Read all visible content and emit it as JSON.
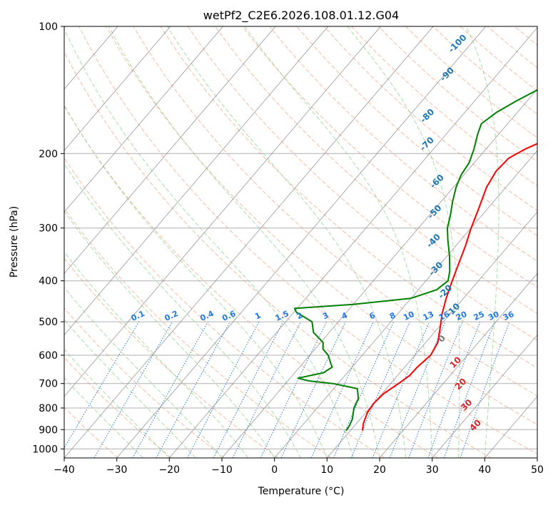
{
  "chart_data": {
    "type": "line",
    "title": "wetPf2_C2E6.2026.108.01.12.G04",
    "xlabel": "Temperature (°C)",
    "ylabel": "Pressure (hPa)",
    "xlim": [
      -40,
      50
    ],
    "ylim": [
      1050,
      100
    ],
    "x_ticks": [
      -40,
      -30,
      -20,
      -10,
      0,
      10,
      20,
      30,
      40,
      50
    ],
    "x_tick_labels": [
      "−40",
      "−30",
      "−20",
      "−10",
      "0",
      "10",
      "20",
      "30",
      "40",
      "50"
    ],
    "y_ticks": [
      100,
      200,
      300,
      400,
      500,
      600,
      700,
      800,
      900,
      1000
    ],
    "y_tick_labels": [
      "100",
      "200",
      "300",
      "400",
      "500",
      "600",
      "700",
      "800",
      "900",
      "1000"
    ],
    "colors": {
      "temperature": "#ff0000",
      "dewpoint": "#008000",
      "isotherm": "#888888",
      "dry_adiabat": "#f4a582",
      "moist_adiabat": "#8fd18f",
      "mixing_ratio": "#1f77e4",
      "height_labels": "#1f77b4",
      "warm_labels": "#d62728"
    },
    "series": [
      {
        "name": "Temperature",
        "points": [
          {
            "p": 905,
            "t": 12.3
          },
          {
            "p": 870,
            "t": 11.3
          },
          {
            "p": 820,
            "t": 10.3
          },
          {
            "p": 780,
            "t": 10.0
          },
          {
            "p": 740,
            "t": 10.3
          },
          {
            "p": 700,
            "t": 11.5
          },
          {
            "p": 670,
            "t": 12.3
          },
          {
            "p": 640,
            "t": 12.4
          },
          {
            "p": 600,
            "t": 13.0
          },
          {
            "p": 560,
            "t": 12.3
          },
          {
            "p": 520,
            "t": 10.5
          },
          {
            "p": 480,
            "t": 8.5
          },
          {
            "p": 440,
            "t": 6.7
          },
          {
            "p": 400,
            "t": 5.0
          },
          {
            "p": 370,
            "t": 3.7
          },
          {
            "p": 330,
            "t": 1.8
          },
          {
            "p": 300,
            "t": 0.0
          },
          {
            "p": 270,
            "t": -1.7
          },
          {
            "p": 240,
            "t": -3.7
          },
          {
            "p": 220,
            "t": -4.5
          },
          {
            "p": 205,
            "t": -4.2
          },
          {
            "p": 195,
            "t": -2.5
          },
          {
            "p": 185,
            "t": 0.0
          },
          {
            "p": 175,
            "t": 2.0
          },
          {
            "p": 160,
            "t": 4.5
          },
          {
            "p": 145,
            "t": 6.8
          },
          {
            "p": 130,
            "t": 9.0
          },
          {
            "p": 120,
            "t": 11.5
          },
          {
            "p": 110,
            "t": 14.5
          },
          {
            "p": 100,
            "t": 17.5
          }
        ]
      },
      {
        "name": "Dewpoint",
        "points": [
          {
            "p": 905,
            "t": 9.2
          },
          {
            "p": 880,
            "t": 9.0
          },
          {
            "p": 850,
            "t": 8.5
          },
          {
            "p": 800,
            "t": 7.0
          },
          {
            "p": 760,
            "t": 6.3
          },
          {
            "p": 720,
            "t": 4.5
          },
          {
            "p": 700,
            "t": -1.0
          },
          {
            "p": 690,
            "t": -6.0
          },
          {
            "p": 680,
            "t": -8.5
          },
          {
            "p": 660,
            "t": -4.5
          },
          {
            "p": 640,
            "t": -3.8
          },
          {
            "p": 630,
            "t": -4.5
          },
          {
            "p": 600,
            "t": -6.5
          },
          {
            "p": 580,
            "t": -8.5
          },
          {
            "p": 560,
            "t": -9.5
          },
          {
            "p": 530,
            "t": -13.0
          },
          {
            "p": 500,
            "t": -15.0
          },
          {
            "p": 475,
            "t": -19.5
          },
          {
            "p": 465,
            "t": -20.5
          },
          {
            "p": 455,
            "t": -10.0
          },
          {
            "p": 440,
            "t": 0.0
          },
          {
            "p": 420,
            "t": 3.5
          },
          {
            "p": 400,
            "t": 4.2
          },
          {
            "p": 380,
            "t": 3.0
          },
          {
            "p": 350,
            "t": 0.5
          },
          {
            "p": 320,
            "t": -2.5
          },
          {
            "p": 300,
            "t": -4.5
          },
          {
            "p": 280,
            "t": -6.0
          },
          {
            "p": 260,
            "t": -7.8
          },
          {
            "p": 240,
            "t": -9.5
          },
          {
            "p": 225,
            "t": -10.5
          },
          {
            "p": 210,
            "t": -11.0
          },
          {
            "p": 195,
            "t": -12.3
          },
          {
            "p": 180,
            "t": -14.0
          },
          {
            "p": 170,
            "t": -15.0
          },
          {
            "p": 160,
            "t": -14.0
          },
          {
            "p": 150,
            "t": -12.0
          },
          {
            "p": 140,
            "t": -9.5
          },
          {
            "p": 130,
            "t": -6.5
          },
          {
            "p": 120,
            "t": -4.5
          },
          {
            "p": 110,
            "t": -3.5
          },
          {
            "p": 100,
            "t": -2.0
          }
        ]
      }
    ],
    "height_annotations": [
      {
        "label": "-100",
        "t": -32.5,
        "p": 110
      },
      {
        "label": "-90",
        "t": -29.5,
        "p": 130
      },
      {
        "label": "-80",
        "t": -26.5,
        "p": 163
      },
      {
        "label": "-70",
        "t": -22.0,
        "p": 190
      },
      {
        "label": "-60",
        "t": -14.0,
        "p": 233
      },
      {
        "label": "-50",
        "t": -9.5,
        "p": 275
      },
      {
        "label": "-40",
        "t": -5.0,
        "p": 322
      },
      {
        "label": "-30",
        "t": 0.0,
        "p": 375
      },
      {
        "label": "-20",
        "t": 5.5,
        "p": 425
      },
      {
        "label": "-10",
        "t": 10.0,
        "p": 470
      },
      {
        "label": "0",
        "t": 12.5,
        "p": 549
      },
      {
        "label": "10",
        "t": 19.0,
        "p": 625
      },
      {
        "label": "20",
        "t": 23.5,
        "p": 703
      },
      {
        "label": "30",
        "t": 28.0,
        "p": 788
      },
      {
        "label": "40",
        "t": 33.0,
        "p": 880
      }
    ],
    "mixing_ratio_labels": [
      "0.1",
      "0.2",
      "0.4",
      "0.6",
      "1",
      "1.5",
      "2",
      "3",
      "4",
      "6",
      "8",
      "10",
      "13",
      "16",
      "20",
      "25",
      "30",
      "36"
    ]
  }
}
